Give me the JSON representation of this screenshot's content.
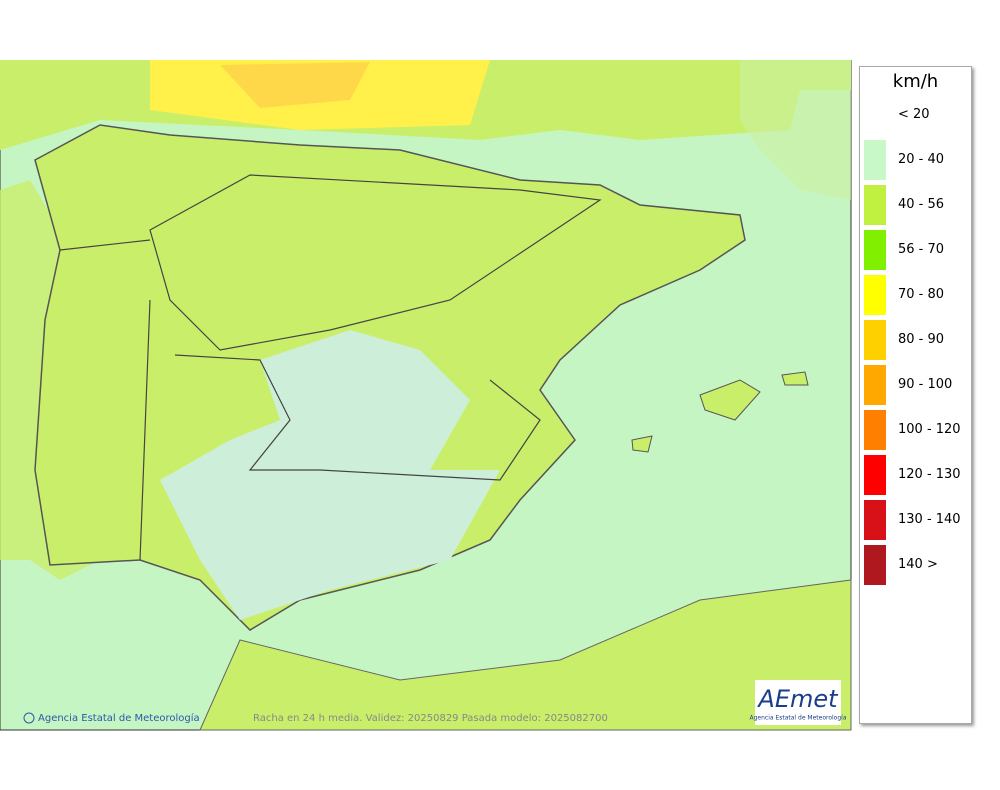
{
  "legend": {
    "unit": "km/h",
    "items": [
      {
        "label": "< 20",
        "color": null
      },
      {
        "label": "20 - 40",
        "color": "#c8f8c8"
      },
      {
        "label": "40 - 56",
        "color": "#c0f040"
      },
      {
        "label": "56 - 70",
        "color": "#80f000"
      },
      {
        "label": "70 - 80",
        "color": "#ffff00"
      },
      {
        "label": "80 - 90",
        "color": "#ffd000"
      },
      {
        "label": "90 - 100",
        "color": "#ffa800"
      },
      {
        "label": "100 - 120",
        "color": "#ff8000"
      },
      {
        "label": "120 - 130",
        "color": "#ff0000"
      },
      {
        "label": "130 - 140",
        "color": "#d81018"
      },
      {
        "label": "140 >",
        "color": "#b01820"
      }
    ]
  },
  "footer": {
    "credit": "Agencia Estatal de Meteorología",
    "caption": "Racha en 24 h media. Validez: 20250829 Pasada modelo: 2025082700",
    "logo": "AEmet",
    "logo_subtitle": "Agencia Estatal de Meteorología"
  }
}
